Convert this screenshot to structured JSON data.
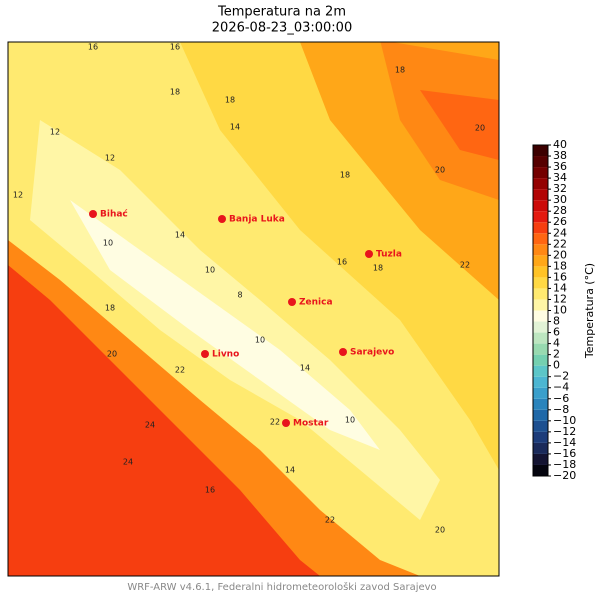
{
  "title": "Temperatura na 2m",
  "subtitle": "2026-08-23_03:00:00",
  "footer": "WRF-ARW v4.6.1, Federalni hidrometeorološki zavod Sarajevo",
  "cities": [
    "Bihać",
    "Banja Luka",
    "Tuzla",
    "Zenica",
    "Sarajevo",
    "Livno",
    "Mostar"
  ],
  "contour_labels": [
    16,
    16,
    18,
    18,
    14,
    18,
    20,
    12,
    12,
    14,
    10,
    12,
    18,
    16,
    18,
    20,
    22,
    18,
    10,
    8,
    10,
    14,
    20,
    22,
    24,
    22,
    24,
    16,
    14,
    10,
    22,
    20
  ],
  "colorbar": {
    "label": "Temperatura (°C)",
    "lim": [
      -20,
      40
    ],
    "colors": [
      "#05050f",
      "#141432",
      "#1a2a5a",
      "#1c3c7a",
      "#1d5090",
      "#1f68a8",
      "#2a84bc",
      "#3a9fcb",
      "#4cb6d2",
      "#5cc6c8",
      "#74d0b0",
      "#98dab0",
      "#bde6c0",
      "#e2f3d6",
      "#fffde2",
      "#fff6a6",
      "#ffea70",
      "#ffd944",
      "#ffc326",
      "#ffa718",
      "#ff8814",
      "#ff6612",
      "#f63e10",
      "#e41a10",
      "#cc0a08",
      "#b20404",
      "#940202",
      "#740000",
      "#560000",
      "#3c0000"
    ],
    "ticks": [
      {
        "value": -20,
        "label": "−20"
      },
      {
        "value": -18,
        "label": "−18"
      },
      {
        "value": -16,
        "label": "−16"
      },
      {
        "value": -14,
        "label": "−14"
      },
      {
        "value": -12,
        "label": "−12"
      },
      {
        "value": -10,
        "label": "−10"
      },
      {
        "value": -8,
        "label": "−8"
      },
      {
        "value": -6,
        "label": "−6"
      },
      {
        "value": -4,
        "label": "−4"
      },
      {
        "value": -2,
        "label": "−2"
      },
      0,
      2,
      4,
      6,
      8,
      10,
      12,
      14,
      16,
      18,
      20,
      22,
      24,
      26,
      28,
      30,
      32,
      34,
      36,
      38,
      40
    ]
  }
}
